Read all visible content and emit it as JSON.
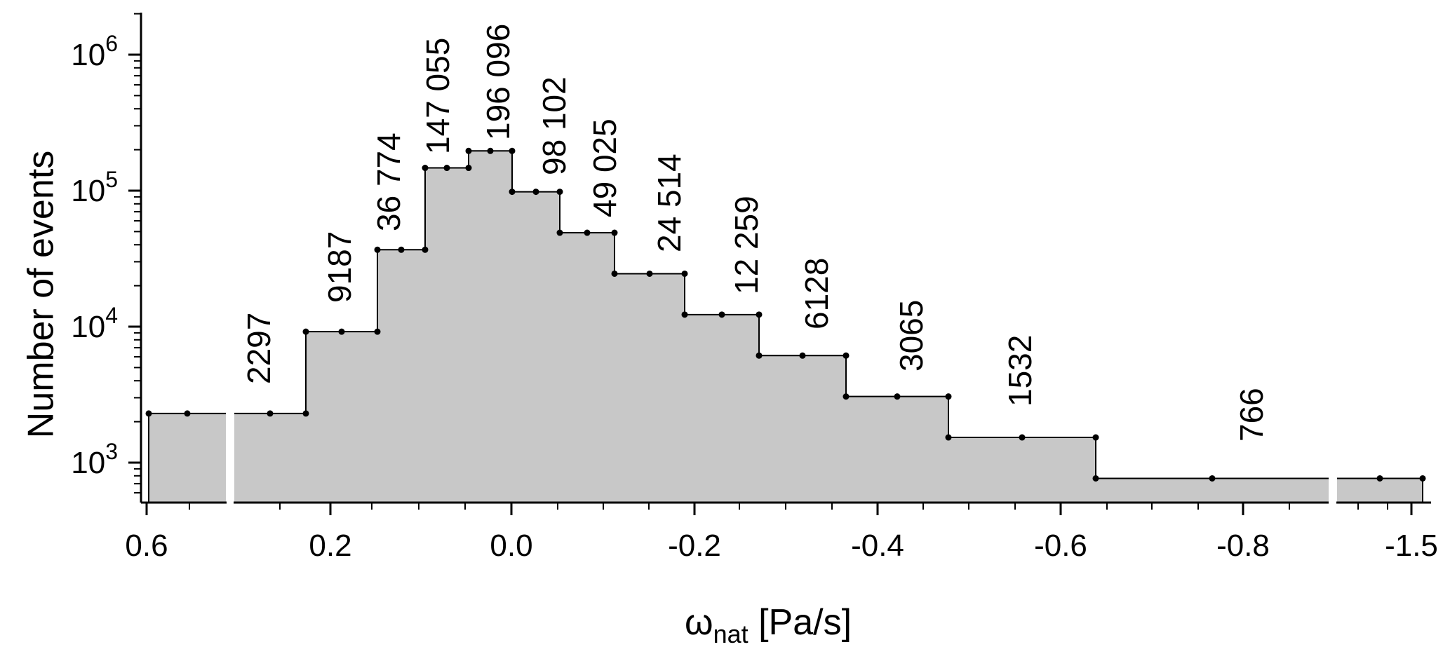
{
  "chart_data": {
    "type": "bar",
    "ylabel": "Number of events",
    "xlabel_symbol": "ω",
    "xlabel_subscript": "nat",
    "xlabel_unit": "[Pa/s]",
    "y_scale": "log",
    "ylim": [
      500,
      2000000
    ],
    "y_ticks": [
      {
        "value": 1000,
        "base": "10",
        "exp": "3"
      },
      {
        "value": 10000,
        "base": "10",
        "exp": "4"
      },
      {
        "value": 100000,
        "base": "10",
        "exp": "5"
      },
      {
        "value": 1000000,
        "base": "10",
        "exp": "6"
      }
    ],
    "x_axis_note": "axis with breaks; bins widen with distance from 0",
    "x_tick_labels": [
      "0.6",
      "0.2",
      "0.0",
      "-0.2",
      "-0.4",
      "-0.6",
      "-0.8",
      "-1.5"
    ],
    "bins": [
      {
        "label": "2297",
        "value": 2297
      },
      {
        "label": "2297",
        "value": 2297
      },
      {
        "label": "9187",
        "value": 9187
      },
      {
        "label": "36774",
        "value": 36774
      },
      {
        "label": "147055",
        "value": 147055
      },
      {
        "label": "196096",
        "value": 196096
      },
      {
        "label": "98102",
        "value": 98102
      },
      {
        "label": "49025",
        "value": 49025
      },
      {
        "label": "24514",
        "value": 24514
      },
      {
        "label": "12259",
        "value": 12259
      },
      {
        "label": "6128",
        "value": 6128
      },
      {
        "label": "3065",
        "value": 3065
      },
      {
        "label": "1532",
        "value": 1532
      },
      {
        "label": "766",
        "value": 766
      },
      {
        "label": "766",
        "value": 766
      }
    ],
    "bar_label_display": [
      "",
      "2297",
      "9187",
      "36 774",
      "147 055",
      "196 096",
      "98 102",
      "49 025",
      "24 514",
      "12 259",
      "6128",
      "3065",
      "1532",
      "766",
      ""
    ],
    "colors": {
      "fill": "#c8c8c8",
      "line": "#000000",
      "break": "#ffffff"
    }
  }
}
